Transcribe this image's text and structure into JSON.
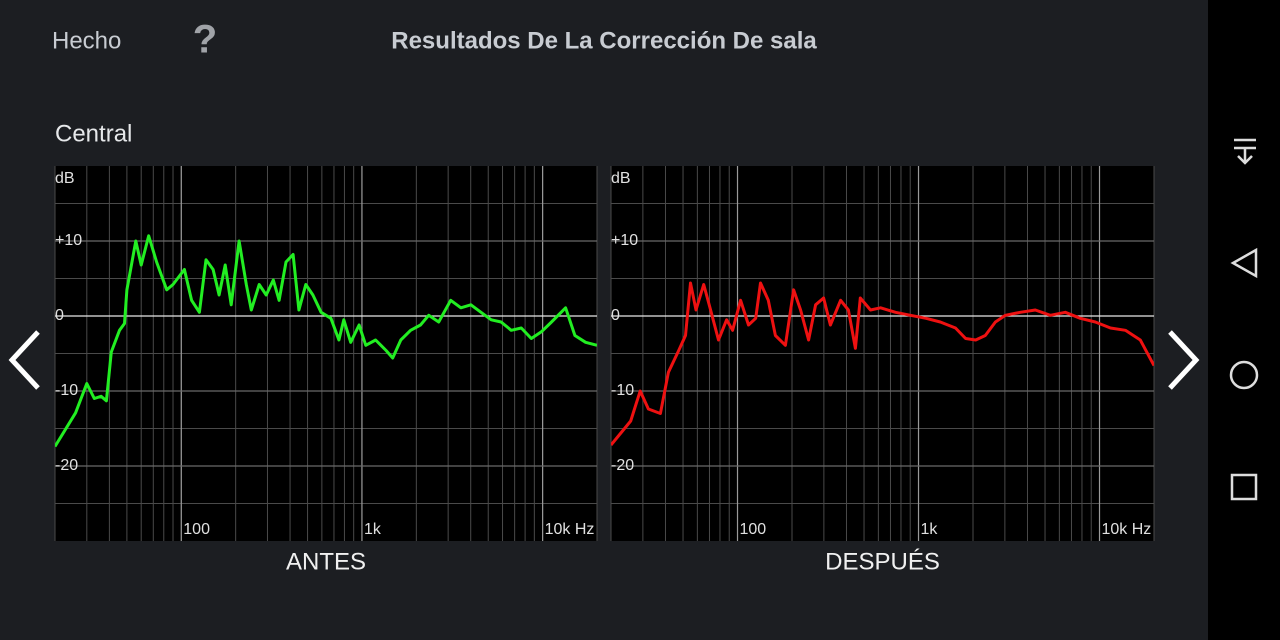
{
  "header": {
    "done": "Hecho",
    "help": "?",
    "title": "Resultados De La Corrección De sala"
  },
  "section": "Central",
  "chart_data": [
    {
      "type": "line",
      "title": "ANTES",
      "xscale": "log",
      "grid": true,
      "y_label": "dB",
      "x": [
        20,
        26,
        30,
        33,
        36,
        38.5,
        41,
        45.5,
        48.5,
        50,
        56,
        60,
        66,
        73,
        83,
        90,
        104,
        114,
        126,
        137,
        150,
        162,
        175,
        189,
        209,
        229,
        244,
        270,
        295,
        323,
        348,
        380,
        416,
        448,
        489,
        535,
        594,
        673,
        745,
        794,
        867,
        964,
        1050,
        1190,
        1360,
        1480,
        1640,
        1860,
        2110,
        2340,
        2660,
        3100,
        3530,
        4010,
        4560,
        5190,
        5890,
        6700,
        7620,
        8660,
        9850,
        11200,
        13400,
        15100,
        17300,
        20000
      ],
      "series": [
        {
          "color": "#22ee22",
          "values": [
            -17.4,
            -12.9,
            -9,
            -11,
            -10.7,
            -11.3,
            -4.8,
            -1.9,
            -1,
            3.5,
            10,
            6.8,
            10.7,
            7.2,
            3.5,
            4.2,
            6.2,
            2.1,
            0.5,
            7.5,
            6.2,
            2.8,
            6.8,
            1.5,
            10,
            4.2,
            0.8,
            4.2,
            2.8,
            4.8,
            2.1,
            7.2,
            8.2,
            0.8,
            4.2,
            2.8,
            0.5,
            -0.3,
            -3.2,
            -0.5,
            -3.5,
            -1.2,
            -3.9,
            -3.2,
            -4.6,
            -5.6,
            -3.2,
            -1.9,
            -1.2,
            0.1,
            -0.8,
            2.1,
            1.1,
            1.5,
            0.5,
            -0.5,
            -0.8,
            -1.9,
            -1.6,
            -3,
            -2.1,
            -0.8,
            1.1,
            -2.6,
            -3.5,
            -3.9
          ]
        }
      ],
      "xlim": [
        20,
        20000
      ],
      "ylim": [
        -30,
        20
      ],
      "xticks": [
        100,
        {
          "value": 1000,
          "label": "1k"
        },
        {
          "value": 10000,
          "label": "10k Hz"
        }
      ],
      "yticks": [
        {
          "value": 10,
          "label": "+10"
        },
        0,
        -10,
        -20
      ]
    },
    {
      "type": "line",
      "title": "DESPUÉS",
      "xscale": "log",
      "grid": true,
      "y_label": "dB",
      "x": [
        20,
        25.7,
        29,
        32.2,
        37.5,
        41.5,
        47.3,
        51.6,
        55,
        59,
        65,
        71,
        78.5,
        87,
        94,
        104,
        115,
        126,
        134,
        148,
        162,
        184,
        204,
        223,
        247,
        270,
        299,
        326,
        371,
        410,
        448,
        477,
        543,
        617,
        746,
        903,
        1100,
        1320,
        1600,
        1820,
        2070,
        2340,
        2660,
        3020,
        3650,
        4420,
        5350,
        6470,
        7830,
        9480,
        11500,
        13900,
        16800,
        20000
      ],
      "series": [
        {
          "color": "#ee1111",
          "values": [
            -17.2,
            -14,
            -10,
            -12.4,
            -13,
            -7.5,
            -4.6,
            -2.6,
            4.4,
            0.8,
            4.2,
            0.8,
            -3.2,
            -0.5,
            -1.9,
            2.1,
            -1.2,
            -0.3,
            4.4,
            2.1,
            -2.6,
            -3.9,
            3.5,
            0.8,
            -3.2,
            1.5,
            2.4,
            -1.2,
            2.1,
            0.8,
            -4.3,
            2.4,
            0.8,
            1.1,
            0.5,
            0.1,
            -0.3,
            -0.8,
            -1.6,
            -3,
            -3.2,
            -2.6,
            -0.8,
            0.1,
            0.5,
            0.8,
            0.1,
            0.5,
            -0.3,
            -0.8,
            -1.6,
            -1.9,
            -3.2,
            -6.6
          ]
        }
      ],
      "xlim": [
        20,
        20000
      ],
      "ylim": [
        -30,
        20
      ],
      "xticks": [
        100,
        {
          "value": 1000,
          "label": "1k"
        },
        {
          "value": 10000,
          "label": "10k Hz"
        }
      ],
      "yticks": [
        {
          "value": 10,
          "label": "+10"
        },
        0,
        -10,
        -20
      ]
    }
  ]
}
